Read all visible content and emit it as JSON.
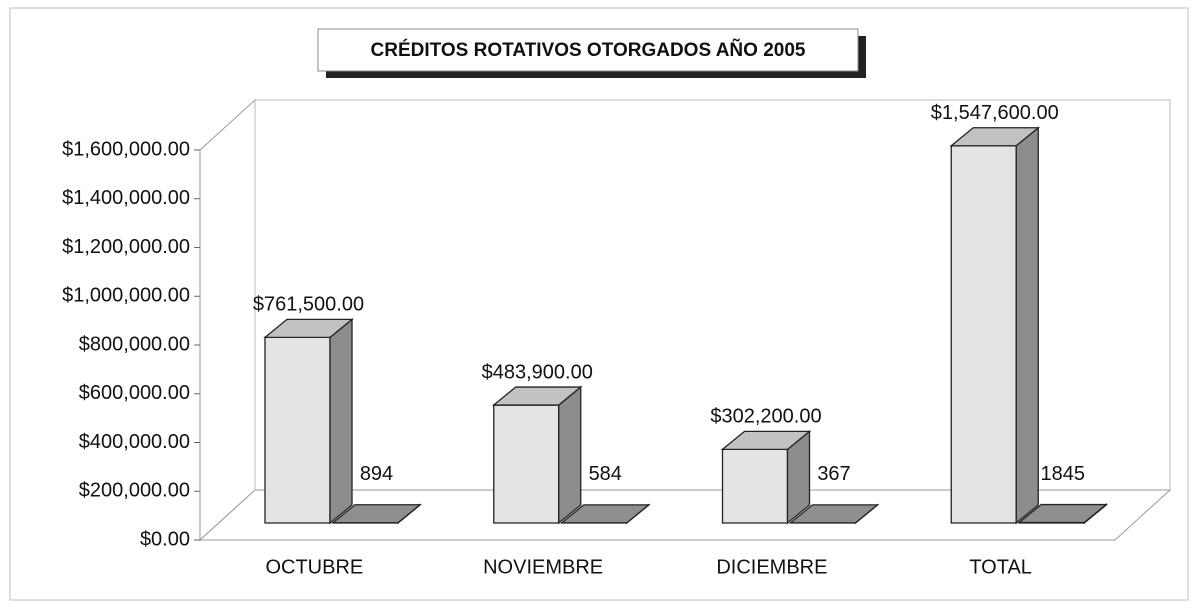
{
  "chart_data": {
    "type": "bar3d",
    "title": "CRÉDITOS ROTATIVOS OTORGADOS AÑO 2005",
    "categories": [
      "OCTUBRE",
      "NOVIEMBRE",
      "DICIEMBRE",
      "TOTAL"
    ],
    "series": [
      {
        "color": "#e4e4e4",
        "values": [
          761500,
          483900,
          302200,
          1547600
        ],
        "value_labels": [
          "$761,500.00",
          "$483,900.00",
          "$302,200.00",
          "$1,547,600.00"
        ]
      },
      {
        "color": "#a8a8a8",
        "values": [
          894,
          584,
          367,
          1845
        ]
      }
    ],
    "ylim": [
      0,
      1600000
    ],
    "yticks": [
      {
        "value": 0,
        "label": "$0.00"
      },
      {
        "value": 200000,
        "label": "$200,000.00"
      },
      {
        "value": 400000,
        "label": "$400,000.00"
      },
      {
        "value": 600000,
        "label": "$600,000.00"
      },
      {
        "value": 800000,
        "label": "$800,000.00"
      },
      {
        "value": 1000000,
        "label": "$1,000,000.00"
      },
      {
        "value": 1200000,
        "label": "$1,200,000.00"
      },
      {
        "value": 1400000,
        "label": "$1,400,000.00"
      },
      {
        "value": 1600000,
        "label": "$1,600,000.00"
      }
    ],
    "grid": false
  }
}
